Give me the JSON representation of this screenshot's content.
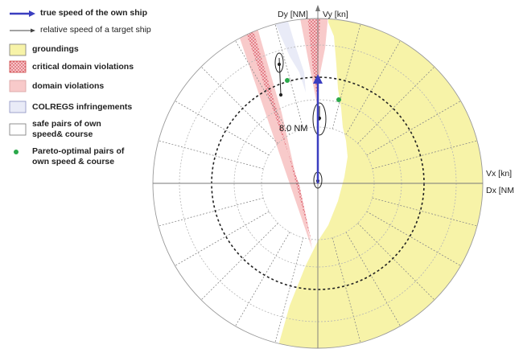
{
  "legend": {
    "true_speed": "true speed of the own ship",
    "relative_speed": "relative speed of a target ship",
    "groundings": "groundings",
    "critical_domain": "critical domain violations",
    "domain_violations": "domain violations",
    "colregs": "COLREGS infringements",
    "safe_pairs": "safe pairs of own speed& course",
    "pareto": "Pareto-optimal pairs of own speed & course"
  },
  "axes": {
    "dy": "Dy [NM]",
    "vy": "Vy [kn]",
    "vx": "Vx [kn]",
    "dx": "Dx [NM"
  },
  "distance_label": "8.0 NM",
  "colors": {
    "grounding": "#f7f3a8",
    "critical": "#e9848c",
    "domain": "#f8caca",
    "colregs": "#e9ebf7",
    "true_speed_arrow": "#3a3ec0",
    "pareto": "#2aa84a"
  }
}
